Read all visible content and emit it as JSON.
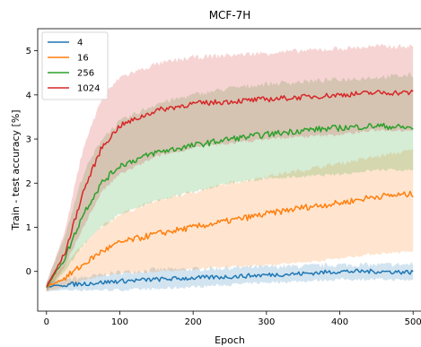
{
  "chart_data": {
    "type": "line",
    "title": "MCF-7H",
    "xlabel": "Epoch",
    "ylabel": "Train - test accuracy [%]",
    "xlim": [
      -12,
      512
    ],
    "ylim": [
      -0.9,
      5.5
    ],
    "xticks": [
      0,
      100,
      200,
      300,
      400,
      500
    ],
    "yticks": [
      0,
      1,
      2,
      3,
      4,
      5
    ],
    "xtick_labels": [
      "0",
      "100",
      "200",
      "300",
      "400",
      "500"
    ],
    "ytick_labels": [
      "0",
      "1",
      "2",
      "3",
      "4",
      "5"
    ],
    "grid": false,
    "legend_position": "top-left",
    "bands_shown": true,
    "series": [
      {
        "name": "4",
        "color": "#1f77b4",
        "x": [
          0,
          25,
          50,
          75,
          100,
          150,
          200,
          250,
          300,
          350,
          400,
          450,
          500
        ],
        "values": [
          -0.35,
          -0.3,
          -0.28,
          -0.25,
          -0.22,
          -0.18,
          -0.15,
          -0.12,
          -0.08,
          -0.05,
          0.0,
          0.0,
          -0.02
        ],
        "band_lower": [
          -0.45,
          -0.42,
          -0.42,
          -0.42,
          -0.42,
          -0.4,
          -0.35,
          -0.3,
          -0.25,
          -0.22,
          -0.18,
          -0.18,
          -0.2
        ],
        "band_upper": [
          -0.25,
          -0.18,
          -0.14,
          -0.08,
          -0.02,
          0.04,
          0.05,
          0.08,
          0.1,
          0.12,
          0.15,
          0.15,
          0.16
        ]
      },
      {
        "name": "16",
        "color": "#ff7f0e",
        "x": [
          0,
          25,
          50,
          75,
          100,
          150,
          200,
          250,
          300,
          350,
          400,
          450,
          500
        ],
        "values": [
          -0.35,
          -0.15,
          0.15,
          0.45,
          0.65,
          0.85,
          1.0,
          1.15,
          1.3,
          1.45,
          1.55,
          1.7,
          1.75
        ],
        "band_lower": [
          -0.45,
          -0.35,
          -0.2,
          -0.1,
          -0.05,
          0.0,
          0.05,
          0.1,
          0.15,
          0.2,
          0.3,
          0.4,
          0.45
        ],
        "band_upper": [
          -0.25,
          0.15,
          0.6,
          1.0,
          1.3,
          1.6,
          1.8,
          2.0,
          2.15,
          2.3,
          2.45,
          2.6,
          2.75
        ]
      },
      {
        "name": "256",
        "color": "#2ca02c",
        "x": [
          0,
          25,
          50,
          75,
          100,
          150,
          200,
          250,
          300,
          350,
          400,
          450,
          500
        ],
        "values": [
          -0.35,
          0.3,
          1.3,
          2.0,
          2.4,
          2.7,
          2.85,
          3.0,
          3.1,
          3.2,
          3.25,
          3.3,
          3.25
        ],
        "band_lower": [
          -0.45,
          0.0,
          0.6,
          1.0,
          1.3,
          1.6,
          1.8,
          2.0,
          2.1,
          2.15,
          2.2,
          2.3,
          2.3
        ],
        "band_upper": [
          -0.25,
          0.8,
          2.2,
          3.0,
          3.4,
          3.8,
          4.0,
          4.15,
          4.25,
          4.3,
          4.35,
          4.4,
          4.45
        ]
      },
      {
        "name": "1024",
        "color": "#d62728",
        "x": [
          0,
          25,
          50,
          75,
          100,
          150,
          200,
          250,
          300,
          350,
          400,
          450,
          500
        ],
        "values": [
          -0.35,
          0.4,
          1.8,
          2.8,
          3.3,
          3.65,
          3.8,
          3.85,
          3.9,
          3.95,
          4.0,
          4.05,
          4.05
        ],
        "band_lower": [
          -0.45,
          0.1,
          1.0,
          1.8,
          2.2,
          2.6,
          2.8,
          2.9,
          3.0,
          3.05,
          3.1,
          3.2,
          3.2
        ],
        "band_upper": [
          -0.25,
          0.9,
          2.8,
          3.9,
          4.4,
          4.7,
          4.85,
          4.9,
          4.95,
          5.0,
          5.05,
          5.1,
          5.1
        ]
      }
    ]
  }
}
